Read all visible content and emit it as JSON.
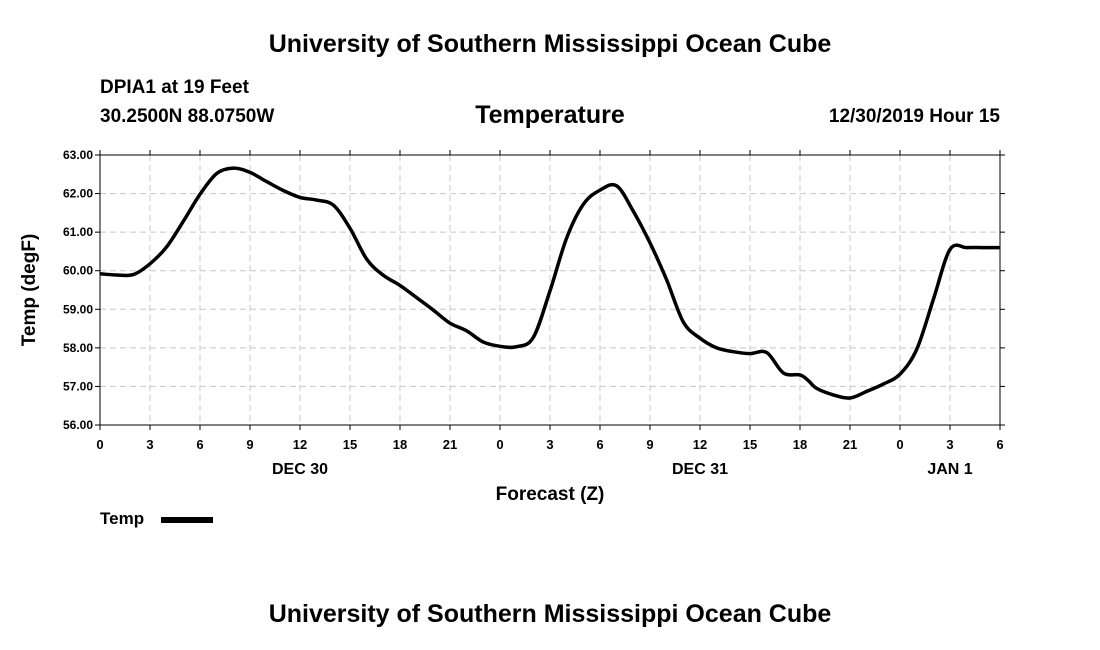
{
  "page": {
    "title_top": "University of Southern Mississippi Ocean Cube",
    "title_bottom": "University of Southern Mississippi Ocean Cube",
    "station": "DPIA1 at 19 Feet",
    "location": "30.2500N 88.0750W",
    "datetime": "12/30/2019 Hour 15"
  },
  "legend": {
    "label": "Temp"
  },
  "chart_data": {
    "type": "line",
    "title": "Temperature",
    "xlabel": "Forecast (Z)",
    "ylabel": "Temp (degF)",
    "x_unit": "forecast hour from DEC 30 00Z",
    "xlim": [
      0,
      54
    ],
    "ylim": [
      56,
      63
    ],
    "yticks": [
      "56.00",
      "57.00",
      "58.00",
      "59.00",
      "60.00",
      "61.00",
      "62.00",
      "63.00"
    ],
    "xticks": [
      {
        "x": 0,
        "label": "0"
      },
      {
        "x": 3,
        "label": "3"
      },
      {
        "x": 6,
        "label": "6"
      },
      {
        "x": 9,
        "label": "9"
      },
      {
        "x": 12,
        "label": "12"
      },
      {
        "x": 15,
        "label": "15"
      },
      {
        "x": 18,
        "label": "18"
      },
      {
        "x": 21,
        "label": "21"
      },
      {
        "x": 24,
        "label": "0"
      },
      {
        "x": 27,
        "label": "3"
      },
      {
        "x": 30,
        "label": "6"
      },
      {
        "x": 33,
        "label": "9"
      },
      {
        "x": 36,
        "label": "12"
      },
      {
        "x": 39,
        "label": "15"
      },
      {
        "x": 42,
        "label": "18"
      },
      {
        "x": 45,
        "label": "21"
      },
      {
        "x": 48,
        "label": "0"
      },
      {
        "x": 51,
        "label": "3"
      },
      {
        "x": 54,
        "label": "6"
      }
    ],
    "date_labels": [
      {
        "x": 12,
        "label": "DEC 30"
      },
      {
        "x": 36,
        "label": "DEC 31"
      },
      {
        "x": 51,
        "label": "JAN 1"
      }
    ],
    "grid": true,
    "legend_position": "bottom-left",
    "series": [
      {
        "name": "Temp",
        "x": [
          0,
          1,
          2,
          3,
          4,
          5,
          6,
          7,
          8,
          9,
          10,
          11,
          12,
          13,
          14,
          15,
          16,
          17,
          18,
          19,
          20,
          21,
          22,
          23,
          24,
          25,
          26,
          27,
          28,
          29,
          30,
          31,
          32,
          33,
          34,
          35,
          36,
          37,
          38,
          39,
          40,
          41,
          42,
          42.5,
          43,
          44,
          45,
          46,
          47,
          48,
          49,
          50,
          51,
          52,
          53,
          54
        ],
        "values": [
          59.92,
          59.89,
          59.9,
          60.18,
          60.62,
          61.28,
          61.98,
          62.52,
          62.66,
          62.55,
          62.31,
          62.08,
          61.9,
          61.83,
          61.7,
          61.1,
          60.3,
          59.88,
          59.62,
          59.3,
          58.98,
          58.64,
          58.44,
          58.15,
          58.04,
          58.03,
          58.27,
          59.48,
          60.85,
          61.72,
          62.09,
          62.2,
          61.54,
          60.72,
          59.76,
          58.67,
          58.25,
          58.0,
          57.9,
          57.85,
          57.88,
          57.35,
          57.3,
          57.15,
          56.95,
          56.78,
          56.7,
          56.87,
          57.06,
          57.32,
          57.96,
          59.25,
          60.55,
          60.6,
          60.6,
          60.6
        ]
      }
    ]
  }
}
